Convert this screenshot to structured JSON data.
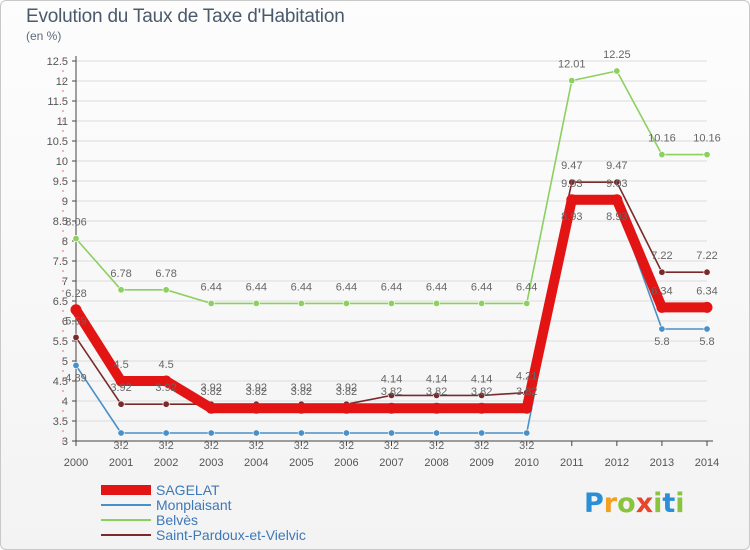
{
  "header": {
    "title": "Evolution du Taux de Taxe d'Habitation",
    "unit": "(en %)"
  },
  "logo": {
    "text": "Proxiti",
    "letters": [
      {
        "ch": "P",
        "color": "#2a8fd6"
      },
      {
        "ch": "r",
        "color": "#f2a020"
      },
      {
        "ch": "o",
        "color": "#8ac43f"
      },
      {
        "ch": "x",
        "color": "#e8452c"
      },
      {
        "ch": "i",
        "color": "#8ac43f"
      },
      {
        "ch": "t",
        "color": "#2a8fd6"
      },
      {
        "ch": "i",
        "color": "#8ac43f"
      }
    ]
  },
  "colors": {
    "axis": "#444444",
    "grid": "#dcdcdc",
    "label": "#555555"
  },
  "chart_data": {
    "type": "line",
    "title": "Evolution du Taux de Taxe d'Habitation",
    "ylabel": "(en %)",
    "xlabel": "",
    "x": [
      "2000",
      "2001",
      "2002",
      "2003",
      "2004",
      "2005",
      "2006",
      "2007",
      "2008",
      "2009",
      "2010",
      "2011",
      "2012",
      "2013",
      "2014"
    ],
    "ylim": [
      3,
      12.5
    ],
    "yticks": [
      "3",
      "3.5",
      "4",
      "4.5",
      "5",
      "5.5",
      "6",
      "6.5",
      "7",
      "7.5",
      "8",
      "8.5",
      "9",
      "9.5",
      "10",
      "10.5",
      "11",
      "11.5",
      "12",
      "12.5"
    ],
    "grid": true,
    "legend_position": "bottom-left",
    "series": [
      {
        "name": "SAGELAT",
        "color": "#e31414",
        "values": [
          6.28,
          4.5,
          4.5,
          3.82,
          3.82,
          3.82,
          3.82,
          3.82,
          3.82,
          3.82,
          3.82,
          9.03,
          9.03,
          6.34,
          6.34
        ],
        "labels": [
          "6.28",
          "4.5",
          "4.5",
          "3.82",
          "3.82",
          "3.82",
          "3.82",
          "3.82",
          "3.82",
          "3.82",
          "3.82",
          "9.03",
          "9.03",
          "6.34",
          "6.34"
        ]
      },
      {
        "name": "Monplaisant",
        "color": "#4a90c8",
        "values": [
          4.89,
          3.2,
          3.2,
          3.2,
          3.2,
          3.2,
          3.2,
          3.2,
          3.2,
          3.2,
          3.2,
          8.93,
          8.93,
          5.8,
          5.8
        ],
        "labels": [
          "4.89",
          "3.2",
          "3.2",
          "3.2",
          "3.2",
          "3.2",
          "3.2",
          "3.2",
          "3.2",
          "3.2",
          "3.2",
          "8.93",
          "8.93",
          "5.8",
          "5.8"
        ]
      },
      {
        "name": "Belvès",
        "color": "#8cd060",
        "values": [
          8.06,
          6.78,
          6.78,
          6.44,
          6.44,
          6.44,
          6.44,
          6.44,
          6.44,
          6.44,
          6.44,
          12.01,
          12.25,
          10.16,
          10.16
        ],
        "labels": [
          "8.06",
          "6.78",
          "6.78",
          "6.44",
          "6.44",
          "6.44",
          "6.44",
          "6.44",
          "6.44",
          "6.44",
          "6.44",
          "12.01",
          "12.25",
          "10.16",
          "10.16"
        ]
      },
      {
        "name": "Saint-Pardoux-et-Vielvic",
        "color": "#7a2a2a",
        "values": [
          5.59,
          3.92,
          3.92,
          3.92,
          3.92,
          3.92,
          3.92,
          4.14,
          4.14,
          4.14,
          4.21,
          9.47,
          9.47,
          7.22,
          7.22
        ],
        "labels": [
          "5.59",
          "3.92",
          "3.92",
          "3.92",
          "3.92",
          "3.92",
          "3.92",
          "4.14",
          "4.14",
          "4.14",
          "4.21",
          "9.47",
          "9.47",
          "7.22",
          "7.22"
        ]
      }
    ]
  }
}
